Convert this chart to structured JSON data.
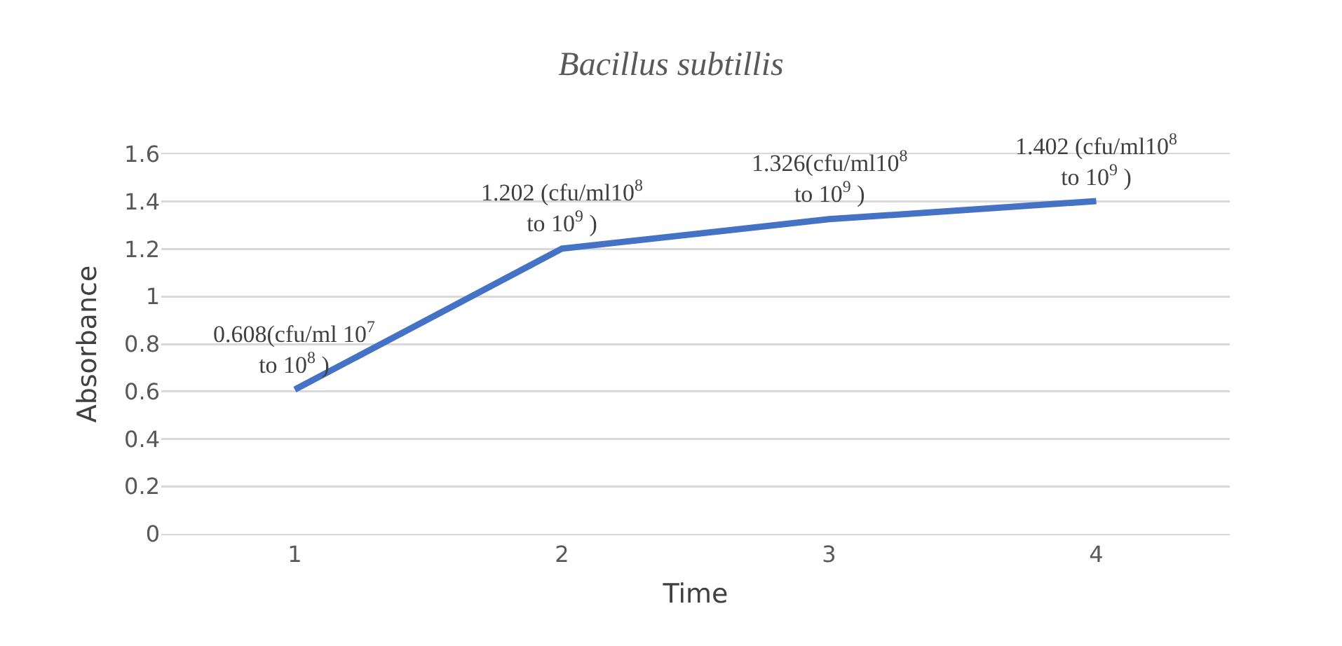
{
  "chart_data": {
    "type": "line",
    "title": "Bacillus subtillis",
    "xlabel": "Time",
    "ylabel": "Absorbance",
    "categories": [
      "1",
      "2",
      "3",
      "4"
    ],
    "series": [
      {
        "color": "#4472c4",
        "values": [
          0.608,
          1.202,
          1.326,
          1.402
        ],
        "value_labels": [
          "0.608(cfu/ml 10$^{7}$ to 10$^{8}$ )",
          "1.202 (cfu/ml10$^{8}$ to 10$^{9}$ )",
          "1.326(cfu/ml10$^{8}$ to 10$^{9}$ )",
          "1.402 (cfu/ml10$^{8}$ to 10$^{9}$ )"
        ]
      }
    ],
    "ylim": [
      0,
      1.6
    ],
    "yticks": [
      0,
      0.2,
      0.4,
      0.6,
      0.8,
      1,
      1.2,
      1.4,
      1.6
    ],
    "grid": "y",
    "marker": "none",
    "line_style": "solid"
  }
}
